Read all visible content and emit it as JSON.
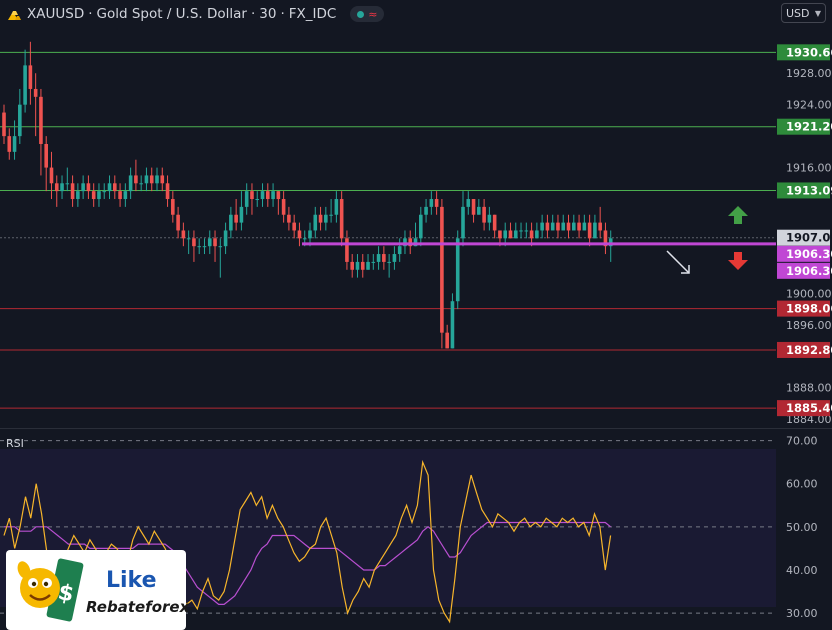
{
  "header": {
    "symbol": "XAUUSD",
    "description": "Gold Spot / U.S. Dollar",
    "interval": "30",
    "exchange": "FX_IDC",
    "separator": "·"
  },
  "currency": {
    "value": "USD",
    "options": [
      "USD"
    ]
  },
  "rsi_label": "RSI",
  "badge": {
    "like": "Like",
    "brand": "Rebateforex"
  },
  "colors": {
    "bg": "#131722",
    "up": "#26a69a",
    "down": "#ef5350",
    "support": "#b22833",
    "resistance": "#4caf50",
    "pivot": "#c047d4",
    "rsi": "#f7b52b",
    "rsi_ma": "#b84fd0"
  },
  "chart_data": [
    {
      "type": "candlestick",
      "title": "XAUUSD · Gold Spot / U.S. Dollar · 30 · FX_IDC",
      "xlabel": "",
      "ylabel": "",
      "ylim": [
        1883.0,
        1933.5
      ],
      "y_ticks": [
        1928.0,
        1924.0,
        1916.0,
        1900.0,
        1896.0,
        1888.0,
        1884.0
      ],
      "grid": false,
      "candles": [
        [
          1923,
          1920,
          1924,
          1919
        ],
        [
          1920,
          1918,
          1921,
          1917
        ],
        [
          1918,
          1920,
          1922,
          1917
        ],
        [
          1920,
          1924,
          1926,
          1919
        ],
        [
          1924,
          1929,
          1931,
          1923
        ],
        [
          1929,
          1926,
          1932,
          1924
        ],
        [
          1926,
          1925,
          1928,
          1920
        ],
        [
          1925,
          1919,
          1926,
          1915
        ],
        [
          1919,
          1916,
          1920,
          1913
        ],
        [
          1916,
          1914,
          1918,
          1912
        ],
        [
          1914,
          1913,
          1915,
          1911
        ],
        [
          1913,
          1914,
          1915,
          1912
        ],
        [
          1914,
          1914,
          1916,
          1913
        ],
        [
          1914,
          1912,
          1915,
          1911
        ],
        [
          1912,
          1913,
          1914,
          1911
        ],
        [
          1913,
          1914,
          1915,
          1912
        ],
        [
          1914,
          1913,
          1915,
          1912
        ],
        [
          1913,
          1912,
          1914,
          1911
        ],
        [
          1912,
          1913,
          1914,
          1911
        ],
        [
          1913,
          1913,
          1914,
          1912
        ],
        [
          1913,
          1914,
          1915,
          1912
        ],
        [
          1914,
          1913,
          1915,
          1912
        ],
        [
          1913,
          1912,
          1914,
          1911
        ],
        [
          1912,
          1913,
          1914,
          1911
        ],
        [
          1913,
          1915,
          1916,
          1912
        ],
        [
          1915,
          1914,
          1917,
          1913
        ],
        [
          1914,
          1914,
          1915,
          1913
        ],
        [
          1914,
          1915,
          1916,
          1913
        ],
        [
          1915,
          1914,
          1916,
          1913
        ],
        [
          1914,
          1915,
          1916,
          1913
        ],
        [
          1915,
          1914,
          1916,
          1913
        ],
        [
          1914,
          1912,
          1915,
          1911
        ],
        [
          1912,
          1910,
          1913,
          1909
        ],
        [
          1910,
          1908,
          1911,
          1907
        ],
        [
          1908,
          1907,
          1909,
          1906
        ],
        [
          1907,
          1907,
          1908,
          1905
        ],
        [
          1907,
          1906,
          1908,
          1904
        ],
        [
          1906,
          1906,
          1907,
          1905
        ],
        [
          1906,
          1906,
          1907,
          1905
        ],
        [
          1906,
          1907,
          1908,
          1905
        ],
        [
          1907,
          1906,
          1908,
          1904
        ],
        [
          1906,
          1906,
          1907,
          1902
        ],
        [
          1906,
          1908,
          1909,
          1905
        ],
        [
          1908,
          1910,
          1911,
          1907
        ],
        [
          1910,
          1909,
          1912,
          1908
        ],
        [
          1909,
          1911,
          1913,
          1908
        ],
        [
          1911,
          1913,
          1914,
          1910
        ],
        [
          1913,
          1912,
          1914,
          1910
        ],
        [
          1912,
          1912,
          1913,
          1911
        ],
        [
          1912,
          1913,
          1914,
          1911
        ],
        [
          1913,
          1912,
          1914,
          1911
        ],
        [
          1912,
          1913,
          1914,
          1911
        ],
        [
          1913,
          1912,
          1913,
          1910
        ],
        [
          1912,
          1910,
          1913,
          1909
        ],
        [
          1910,
          1909,
          1911,
          1908
        ],
        [
          1909,
          1908,
          1910,
          1907
        ],
        [
          1908,
          1907,
          1909,
          1906
        ],
        [
          1907,
          1907,
          1908,
          1906
        ],
        [
          1907,
          1908,
          1909,
          1906
        ],
        [
          1908,
          1910,
          1911,
          1907
        ],
        [
          1910,
          1909,
          1911,
          1908
        ],
        [
          1909,
          1910,
          1911,
          1908
        ],
        [
          1910,
          1910,
          1912,
          1909
        ],
        [
          1910,
          1912,
          1913,
          1909
        ],
        [
          1912,
          1907,
          1913,
          1906
        ],
        [
          1907,
          1904,
          1908,
          1903
        ],
        [
          1904,
          1903,
          1905,
          1902
        ],
        [
          1903,
          1904,
          1905,
          1902
        ],
        [
          1904,
          1903,
          1905,
          1902
        ],
        [
          1903,
          1904,
          1905,
          1903
        ],
        [
          1904,
          1904,
          1905,
          1903
        ],
        [
          1904,
          1905,
          1906,
          1903
        ],
        [
          1905,
          1904,
          1906,
          1903
        ],
        [
          1904,
          1904,
          1905,
          1902
        ],
        [
          1904,
          1905,
          1906,
          1903
        ],
        [
          1905,
          1906,
          1907,
          1904
        ],
        [
          1906,
          1907,
          1908,
          1905
        ],
        [
          1907,
          1906,
          1908,
          1905
        ],
        [
          1906,
          1907,
          1909,
          1906
        ],
        [
          1907,
          1910,
          1911,
          1906
        ],
        [
          1910,
          1911,
          1912,
          1909
        ],
        [
          1911,
          1912,
          1913,
          1910
        ],
        [
          1912,
          1911,
          1913,
          1910
        ],
        [
          1911,
          1895,
          1912,
          1893
        ],
        [
          1895,
          1893,
          1896,
          1893
        ],
        [
          1893,
          1899,
          1900,
          1893
        ],
        [
          1899,
          1907,
          1908,
          1898
        ],
        [
          1907,
          1911,
          1913,
          1906
        ],
        [
          1911,
          1912,
          1913,
          1910
        ],
        [
          1912,
          1910,
          1912,
          1909
        ],
        [
          1910,
          1911,
          1912,
          1910
        ],
        [
          1911,
          1909,
          1912,
          1908
        ],
        [
          1909,
          1910,
          1911,
          1908
        ],
        [
          1910,
          1908,
          1910,
          1907
        ],
        [
          1908,
          1907,
          1908,
          1906
        ],
        [
          1907,
          1908,
          1909,
          1906
        ],
        [
          1908,
          1907,
          1909,
          1907
        ],
        [
          1907,
          1908,
          1909,
          1907
        ],
        [
          1908,
          1908,
          1909,
          1907
        ],
        [
          1908,
          1908,
          1909,
          1907
        ],
        [
          1908,
          1907,
          1909,
          1906
        ],
        [
          1907,
          1908,
          1909,
          1907
        ],
        [
          1908,
          1909,
          1910,
          1907
        ],
        [
          1909,
          1908,
          1910,
          1907
        ],
        [
          1908,
          1909,
          1910,
          1908
        ],
        [
          1909,
          1908,
          1910,
          1907
        ],
        [
          1908,
          1909,
          1910,
          1908
        ],
        [
          1909,
          1908,
          1910,
          1907
        ],
        [
          1908,
          1909,
          1910,
          1908
        ],
        [
          1909,
          1908,
          1910,
          1907
        ],
        [
          1908,
          1909,
          1910,
          1908
        ],
        [
          1909,
          1907,
          1910,
          1906
        ],
        [
          1907,
          1909,
          1910,
          1907
        ],
        [
          1909,
          1908,
          1911,
          1907
        ],
        [
          1908,
          1906,
          1909,
          1905
        ],
        [
          1906,
          1907,
          1908,
          1904
        ]
      ],
      "levels": [
        {
          "price": 1930.66,
          "label": "1930.66",
          "role": "resistance"
        },
        {
          "price": 1921.2,
          "label": "1921.20",
          "role": "resistance"
        },
        {
          "price": 1913.09,
          "label": "1913.09",
          "role": "resistance"
        },
        {
          "price": 1898.06,
          "label": "1898.06",
          "role": "support"
        },
        {
          "price": 1892.8,
          "label": "1892.80",
          "role": "support"
        },
        {
          "price": 1885.4,
          "label": "1885.40",
          "role": "support"
        }
      ],
      "pivot": {
        "price": 1906.3,
        "labels": [
          "1906.30",
          "1906.30"
        ]
      },
      "current_price": {
        "price": 1907.08,
        "label": "1907.08"
      },
      "annotations": [
        "up-arrow",
        "down-arrow",
        "down-right-arrow"
      ]
    },
    {
      "type": "line",
      "title": "RSI",
      "xlabel": "",
      "ylabel": "",
      "ylim": [
        27,
        72
      ],
      "y_ticks": [
        70.0,
        60.0,
        50.0,
        40.0,
        30.0
      ],
      "bands": [
        70,
        50,
        30
      ],
      "grid": false,
      "series": [
        {
          "values": [
            48,
            52,
            45,
            50,
            57,
            52,
            60,
            53,
            44,
            40,
            38,
            42,
            45,
            48,
            46,
            44,
            47,
            45,
            43,
            44,
            46,
            45,
            43,
            42,
            47,
            50,
            48,
            46,
            49,
            47,
            45,
            42,
            38,
            34,
            32,
            33,
            31,
            35,
            38,
            34,
            33,
            35,
            40,
            47,
            54,
            56,
            58,
            55,
            57,
            52,
            55,
            52,
            50,
            47,
            44,
            42,
            43,
            45,
            46,
            50,
            52,
            48,
            44,
            36,
            30,
            33,
            35,
            38,
            36,
            40,
            42,
            44,
            46,
            48,
            52,
            55,
            51,
            55,
            65,
            62,
            40,
            33,
            30,
            28,
            38,
            50,
            56,
            62,
            58,
            54,
            52,
            50,
            53,
            52,
            51,
            49,
            51,
            52,
            50,
            51,
            50,
            52,
            51,
            50,
            52,
            51,
            52,
            50,
            51,
            48,
            53,
            50,
            40,
            48
          ]
        },
        {
          "values": [
            50,
            50,
            50,
            49,
            49,
            49,
            50,
            50,
            50,
            49,
            48,
            47,
            46,
            46,
            46,
            46,
            45,
            45,
            45,
            45,
            45,
            45,
            45,
            45,
            45,
            46,
            46,
            46,
            46,
            46,
            46,
            45,
            44,
            42,
            40,
            38,
            36,
            35,
            34,
            33,
            32,
            32,
            33,
            34,
            36,
            38,
            40,
            43,
            45,
            46,
            48,
            48,
            48,
            48,
            48,
            47,
            46,
            45,
            45,
            45,
            45,
            45,
            45,
            44,
            43,
            42,
            41,
            40,
            40,
            40,
            41,
            41,
            42,
            43,
            44,
            45,
            46,
            47,
            49,
            50,
            49,
            47,
            45,
            43,
            43,
            44,
            46,
            48,
            49,
            50,
            51,
            51,
            51,
            51,
            51,
            51,
            51,
            51,
            51,
            51,
            51,
            51,
            51,
            51,
            51,
            51,
            51,
            51,
            51,
            51,
            51,
            51,
            51,
            50
          ]
        }
      ]
    }
  ]
}
